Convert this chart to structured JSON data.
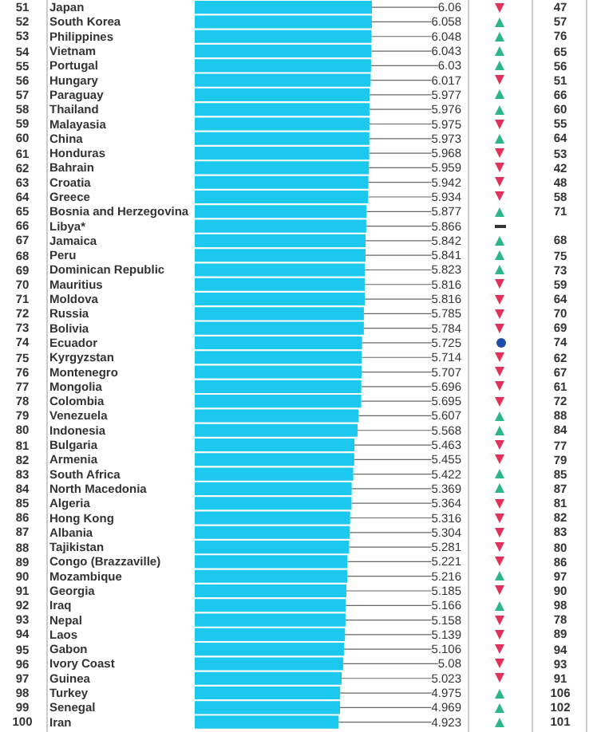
{
  "chart_data": {
    "type": "bar",
    "orientation": "horizontal",
    "data_labels": true,
    "color": "#1cc8ee",
    "xlim": [
      0,
      6.06
    ],
    "categories": [
      "Japan",
      "South Korea",
      "Philippines",
      "Vietnam",
      "Portugal",
      "Hungary",
      "Paraguay",
      "Thailand",
      "Malayasia",
      "China",
      "Honduras",
      "Bahrain",
      "Croatia",
      "Greece",
      "Bosnia and Herzegovina",
      "Libya*",
      "Jamaica",
      "Peru",
      "Dominican Republic",
      "Mauritius",
      "Moldova",
      "Russia",
      "Bolivia",
      "Ecuador",
      "Kyrgyzstan",
      "Montenegro",
      "Mongolia",
      "Colombia",
      "Venezuela",
      "Indonesia",
      "Bulgaria",
      "Armenia",
      "South Africa",
      "North Macedonia",
      "Algeria",
      "Hong Kong",
      "Albania",
      "Tajikistan",
      "Congo (Brazzaville)",
      "Mozambique",
      "Georgia",
      "Iraq",
      "Nepal",
      "Laos",
      "Gabon",
      "Ivory Coast",
      "Guinea",
      "Turkey",
      "Senegal",
      "Iran"
    ],
    "values": [
      6.06,
      6.058,
      6.048,
      6.043,
      6.03,
      6.017,
      5.977,
      5.976,
      5.975,
      5.973,
      5.968,
      5.959,
      5.942,
      5.934,
      5.877,
      5.866,
      5.842,
      5.841,
      5.823,
      5.816,
      5.816,
      5.785,
      5.784,
      5.725,
      5.714,
      5.707,
      5.696,
      5.695,
      5.607,
      5.568,
      5.463,
      5.455,
      5.422,
      5.369,
      5.364,
      5.316,
      5.304,
      5.281,
      5.221,
      5.216,
      5.185,
      5.166,
      5.158,
      5.139,
      5.106,
      5.08,
      5.023,
      4.975,
      4.969,
      4.923
    ],
    "annotations": [
      "51",
      "47",
      "52",
      "57",
      "53",
      "76",
      "54",
      "65",
      "55",
      "56",
      "56",
      "51",
      "57",
      "66",
      "58",
      "60",
      "59",
      "55",
      "60",
      "64",
      "61",
      "53",
      "62",
      "42",
      "63",
      "48",
      "64",
      "58",
      "65",
      "71",
      "66",
      "67",
      "68",
      "68",
      "75",
      "69",
      "73",
      "70",
      "59",
      "71",
      "64",
      "72",
      "70",
      "73",
      "69",
      "74",
      "74",
      "75",
      "62",
      "76",
      "67",
      "77",
      "61",
      "78",
      "72",
      "79",
      "88",
      "80",
      "84",
      "81",
      "77",
      "82",
      "79",
      "83",
      "85",
      "84",
      "87",
      "85",
      "81",
      "86",
      "82",
      "87",
      "83",
      "88",
      "80",
      "89",
      "86",
      "90",
      "97",
      "91",
      "90",
      "92",
      "98",
      "93",
      "78",
      "94",
      "89",
      "95",
      "94",
      "96",
      "93",
      "97",
      "91",
      "98",
      "106",
      "99",
      "102",
      "100",
      "101"
    ]
  }
}
